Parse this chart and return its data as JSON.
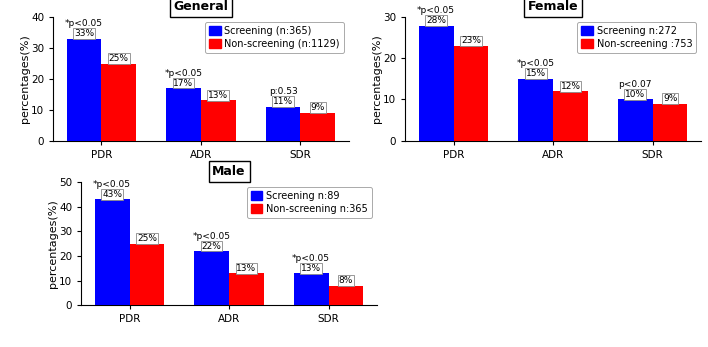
{
  "panels": [
    {
      "title": "General",
      "categories": [
        "PDR",
        "ADR",
        "SDR"
      ],
      "screening_values": [
        33,
        17,
        11
      ],
      "nonscreening_values": [
        25,
        13,
        9
      ],
      "ylim": [
        0,
        40
      ],
      "yticks": [
        0,
        10,
        20,
        30,
        40
      ],
      "legend_screening": "Screening (n:365)",
      "legend_nonscreening": "Non-screening (n:1129)",
      "pvalues": [
        "*p<0.05",
        "*p<0.05",
        "p:0.53"
      ],
      "pval_xoffset": [
        -0.175,
        -0.175,
        -0.175
      ]
    },
    {
      "title": "Female",
      "categories": [
        "PDR",
        "ADR",
        "SDR"
      ],
      "screening_values": [
        28,
        15,
        10
      ],
      "nonscreening_values": [
        23,
        12,
        9
      ],
      "ylim": [
        0,
        30
      ],
      "yticks": [
        0,
        10,
        20,
        30
      ],
      "legend_screening": "Screening n:272",
      "legend_nonscreening": "Non-screening :753",
      "pvalues": [
        "*p<0.05",
        "*p<0.05",
        "p<0.07"
      ],
      "pval_xoffset": [
        -0.175,
        -0.175,
        -0.175
      ]
    },
    {
      "title": "Male",
      "categories": [
        "PDR",
        "ADR",
        "SDR"
      ],
      "screening_values": [
        43,
        22,
        13
      ],
      "nonscreening_values": [
        25,
        13,
        8
      ],
      "ylim": [
        0,
        50
      ],
      "yticks": [
        0,
        10,
        20,
        30,
        40,
        50
      ],
      "legend_screening": "Screening n:89",
      "legend_nonscreening": "Non-screening n:365",
      "pvalues": [
        "*p<0.05",
        "*p<0.05",
        "*p<0.05"
      ],
      "pval_xoffset": [
        -0.175,
        -0.175,
        -0.175
      ]
    }
  ],
  "blue_color": "#0000FF",
  "red_color": "#FF0000",
  "bar_width": 0.35,
  "title_fontsize": 9,
  "tick_fontsize": 7.5,
  "label_fontsize": 8,
  "legend_fontsize": 7,
  "pval_fontsize": 6.5,
  "bar_label_fontsize": 6.5,
  "ylabel": "percentages(%)"
}
